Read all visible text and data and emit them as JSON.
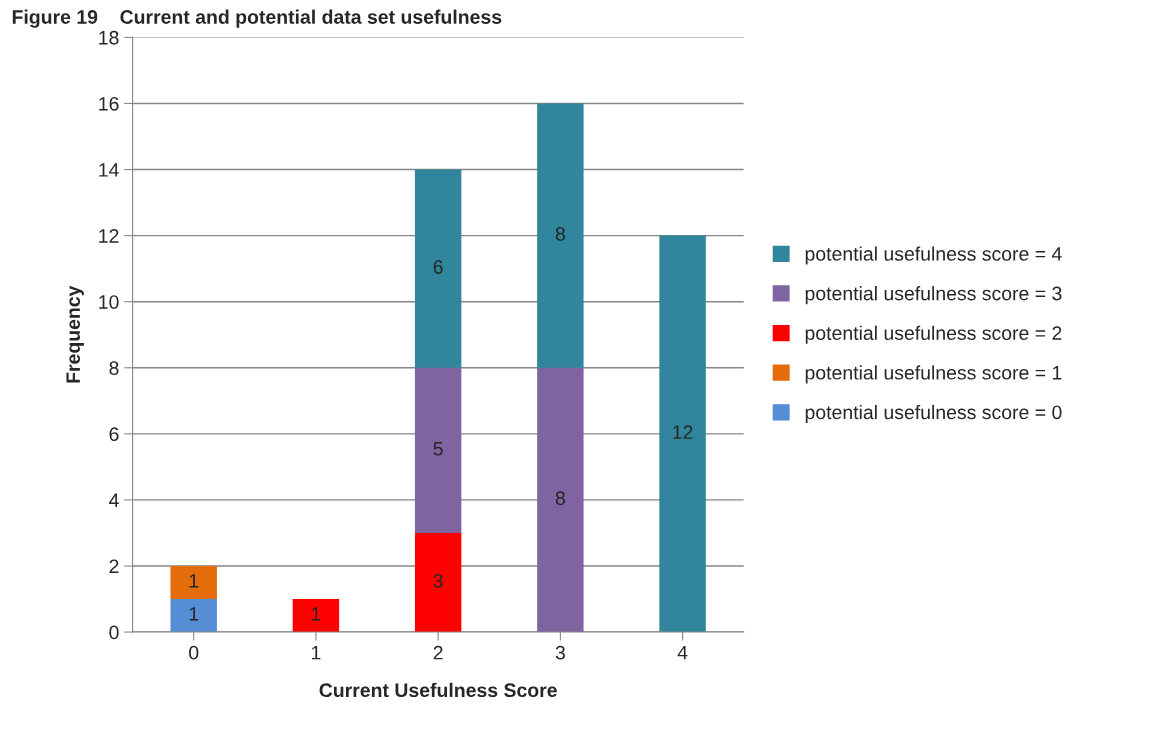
{
  "chart_data": {
    "type": "bar",
    "title": "Figure 19    Current and potential data set usefulness",
    "xlabel": "Current Usefulness Score",
    "ylabel": "Frequency",
    "categories": [
      "0",
      "1",
      "2",
      "3",
      "4"
    ],
    "stacked": true,
    "series": [
      {
        "name": "potential usefulness score = 0",
        "color": "#558ed5",
        "values": [
          1,
          0,
          0,
          0,
          0
        ],
        "value_labels": [
          "1",
          null,
          null,
          null,
          null
        ]
      },
      {
        "name": "potential usefulness score = 1",
        "color": "#e46c0a",
        "values": [
          1,
          0,
          0,
          0,
          0
        ],
        "value_labels": [
          "1",
          null,
          null,
          null,
          null
        ]
      },
      {
        "name": "potential usefulness score = 2",
        "color": "#ff0000",
        "values": [
          0,
          1,
          3,
          0,
          0
        ],
        "value_labels": [
          null,
          "1",
          "3",
          null,
          null
        ]
      },
      {
        "name": "potential usefulness score = 3",
        "color": "#8064a2",
        "values": [
          0,
          0,
          5,
          8,
          0
        ],
        "value_labels": [
          null,
          null,
          "5",
          "8",
          null
        ]
      },
      {
        "name": "potential usefulness score = 4",
        "color": "#31859c",
        "values": [
          0,
          0,
          6,
          8,
          12
        ],
        "value_labels": [
          null,
          null,
          "6",
          "8",
          "12"
        ]
      }
    ],
    "ylim": [
      0,
      18
    ],
    "yticks": [
      0,
      2,
      4,
      6,
      8,
      10,
      12,
      14,
      16,
      18
    ],
    "grid": "y",
    "legend": "right"
  }
}
